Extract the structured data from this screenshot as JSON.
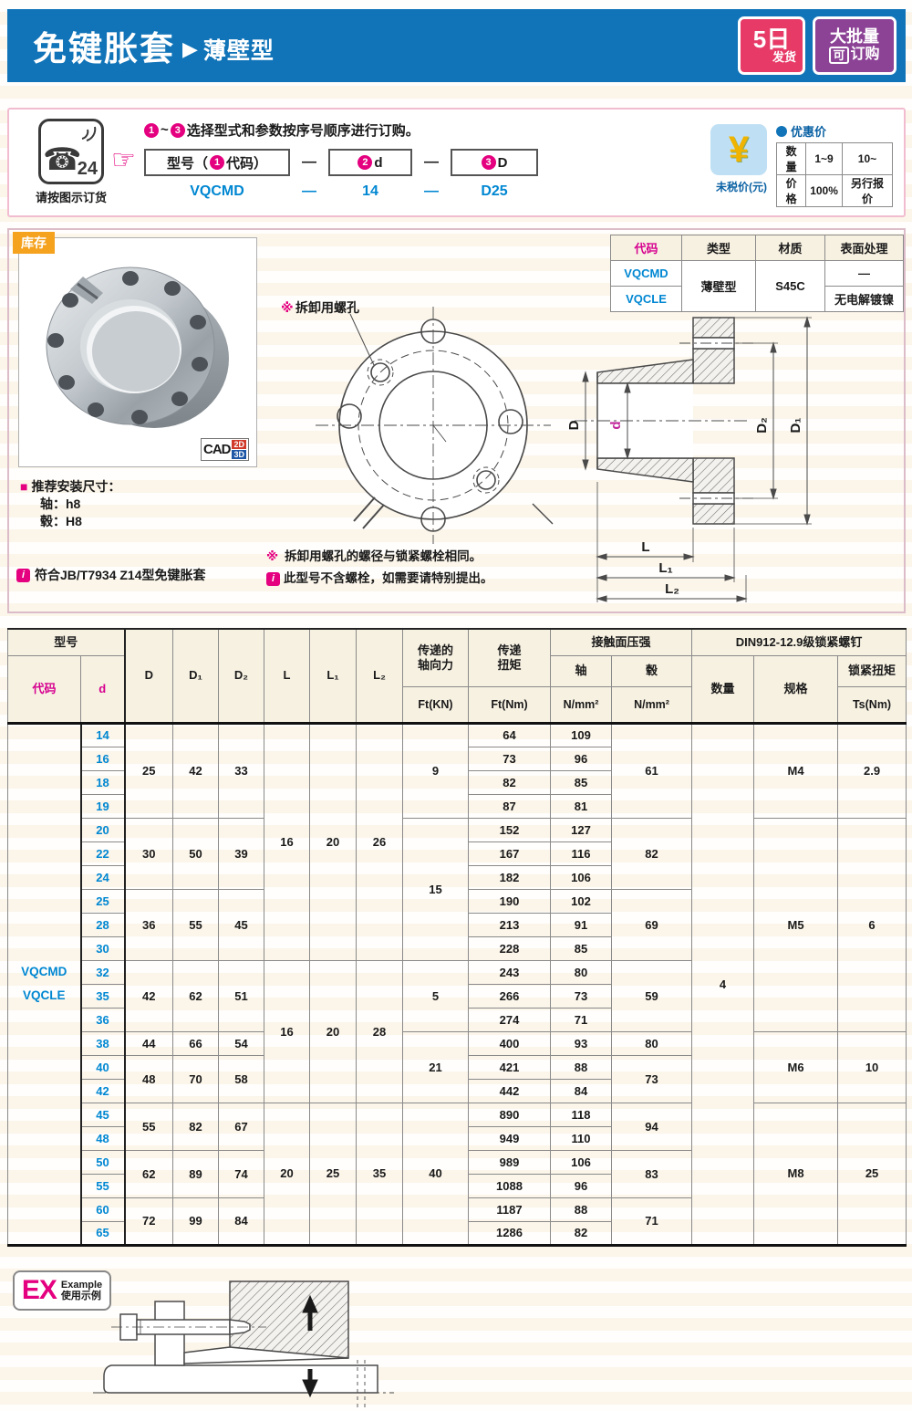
{
  "banner": {
    "title": "免键胀套",
    "arrow": "▶",
    "subtitle": "薄壁型",
    "ship_badge": {
      "line1": "5日",
      "line2": "发货"
    },
    "bulk_badge": {
      "line1": "大批量",
      "boxed": "可",
      "rest": "订购"
    }
  },
  "order": {
    "phone_number": "24",
    "phone_glyph": "☎",
    "phone_label": "请按图示订货",
    "hand_icon": "☞",
    "steps": {
      "from": "1",
      "tilde": "~",
      "to": "3"
    },
    "instruction": "选择型式和参数按序号顺序进行订购。",
    "box1": {
      "pre": "型号（",
      "num": "1",
      "post": "代码）"
    },
    "box2": {
      "num": "2",
      "post": "d"
    },
    "box3": {
      "num": "3",
      "post": "D"
    },
    "dash": "—",
    "example": {
      "code": "VQCMD",
      "dash1": "—",
      "d": "14",
      "dash2": "—",
      "D": "D25"
    }
  },
  "pricing": {
    "yen": "¥",
    "untaxed_label": "未税价(元)",
    "title": "优惠价",
    "rows": [
      [
        "数量",
        "1~9",
        "10~"
      ],
      [
        "价格",
        "100%",
        "另行报价"
      ]
    ]
  },
  "stock_badge": "库存",
  "cad": {
    "label": "CAD",
    "b2d": "2D",
    "b3d": "3D"
  },
  "spec_table": {
    "headers": [
      "代码",
      "类型",
      "材质",
      "表面处理"
    ],
    "codes": [
      "VQCMD",
      "VQCLE"
    ],
    "type": "薄壁型",
    "material": "S45C",
    "surface": [
      "—",
      "无电解镀镍"
    ]
  },
  "install": {
    "bullet": "■",
    "title": "推荐安装尺寸：",
    "shaft": "轴：h8",
    "hub": "毂：H8",
    "note": "符合JB/T7934 Z14型免键胀套",
    "note_icon": "i"
  },
  "front_view": {
    "label_mark": "※",
    "label_text": "拆卸用螺孔"
  },
  "dims": {
    "D": "D",
    "d": "d",
    "D1": "D₁",
    "D2": "D₂",
    "L": "L",
    "L1": "L₁",
    "L2": "L₂"
  },
  "notes": [
    {
      "mark": "※",
      "icon": false,
      "text": "拆卸用螺孔的螺径与锁紧螺栓相同。"
    },
    {
      "mark": "i",
      "icon": true,
      "text": "此型号不含螺栓，如需要请特别提出。"
    }
  ],
  "main_table": {
    "header": [
      [
        {
          "t": "型号",
          "cs": 2,
          "c": "br2"
        },
        {
          "t": "D",
          "rs": 3
        },
        {
          "t": "D₁",
          "rs": 3
        },
        {
          "t": "D₂",
          "rs": 3
        },
        {
          "t": "L",
          "rs": 3
        },
        {
          "t": "L₁",
          "rs": 3
        },
        {
          "t": "L₂",
          "rs": 3
        },
        {
          "t": "传递的\n轴向力",
          "rs": 2
        },
        {
          "t": "传递\n扭矩",
          "rs": 2
        },
        {
          "t": "接触面压强",
          "cs": 2
        },
        {
          "t": "DIN912-12.9级锁紧螺钉",
          "cs": 3
        }
      ],
      [
        {
          "t": "代码",
          "rs": 2,
          "c": "c-mag"
        },
        {
          "t": "d",
          "rs": 2,
          "c": "c-mag br2"
        },
        {
          "t": "轴"
        },
        {
          "t": "毂"
        },
        {
          "t": "数量",
          "rs": 2
        },
        {
          "t": "规格",
          "rs": 2
        },
        {
          "t": "锁紧扭矩"
        }
      ],
      [
        {
          "t": "Ft(KN)"
        },
        {
          "t": "Ft(Nm)"
        },
        {
          "t": "N/mm²"
        },
        {
          "t": "N/mm²"
        },
        {
          "t": "Ts(Nm)"
        }
      ]
    ],
    "body": [
      [
        {
          "t": "VQCMD\nVQCLE",
          "rs": 22,
          "c": "c-code"
        },
        {
          "t": "14",
          "c": "c-d"
        },
        {
          "t": "25",
          "rs": 4
        },
        {
          "t": "42",
          "rs": 4
        },
        {
          "t": "33",
          "rs": 4
        },
        {
          "t": "16",
          "rs": 10
        },
        {
          "t": "20",
          "rs": 10
        },
        {
          "t": "26",
          "rs": 10
        },
        {
          "t": "9",
          "rs": 4
        },
        {
          "t": "64"
        },
        {
          "t": "109"
        },
        {
          "t": "61",
          "rs": 4
        },
        {
          "t": "4",
          "rs": 22
        },
        {
          "t": "M4",
          "rs": 4
        },
        {
          "t": "2.9",
          "rs": 4
        }
      ],
      [
        {
          "t": "16",
          "c": "c-d"
        },
        {
          "t": "73"
        },
        {
          "t": "96"
        }
      ],
      [
        {
          "t": "18",
          "c": "c-d"
        },
        {
          "t": "82"
        },
        {
          "t": "85"
        }
      ],
      [
        {
          "t": "19",
          "c": "c-d"
        },
        {
          "t": "87"
        },
        {
          "t": "81"
        }
      ],
      [
        {
          "t": "20",
          "c": "c-d"
        },
        {
          "t": "30",
          "rs": 3
        },
        {
          "t": "50",
          "rs": 3
        },
        {
          "t": "39",
          "rs": 3
        },
        {
          "t": "15",
          "rs": 6
        },
        {
          "t": "152"
        },
        {
          "t": "127"
        },
        {
          "t": "82",
          "rs": 3
        },
        {
          "t": "M5",
          "rs": 9
        },
        {
          "t": "6",
          "rs": 9
        }
      ],
      [
        {
          "t": "22",
          "c": "c-d"
        },
        {
          "t": "167"
        },
        {
          "t": "116"
        }
      ],
      [
        {
          "t": "24",
          "c": "c-d"
        },
        {
          "t": "182"
        },
        {
          "t": "106"
        }
      ],
      [
        {
          "t": "25",
          "c": "c-d"
        },
        {
          "t": "36",
          "rs": 3
        },
        {
          "t": "55",
          "rs": 3
        },
        {
          "t": "45",
          "rs": 3
        },
        {
          "t": "190"
        },
        {
          "t": "102"
        },
        {
          "t": "69",
          "rs": 3
        }
      ],
      [
        {
          "t": "28",
          "c": "c-d"
        },
        {
          "t": "213"
        },
        {
          "t": "91"
        }
      ],
      [
        {
          "t": "30",
          "c": "c-d"
        },
        {
          "t": "228"
        },
        {
          "t": "85"
        }
      ],
      [
        {
          "t": "32",
          "c": "c-d"
        },
        {
          "t": "42",
          "rs": 3
        },
        {
          "t": "62",
          "rs": 3
        },
        {
          "t": "51",
          "rs": 3
        },
        {
          "t": "16",
          "rs": 6
        },
        {
          "t": "20",
          "rs": 6
        },
        {
          "t": "28",
          "rs": 6
        },
        {
          "t": "5",
          "rs": 3
        },
        {
          "t": "243"
        },
        {
          "t": "80"
        },
        {
          "t": "59",
          "rs": 3
        }
      ],
      [
        {
          "t": "35",
          "c": "c-d"
        },
        {
          "t": "266"
        },
        {
          "t": "73"
        }
      ],
      [
        {
          "t": "36",
          "c": "c-d"
        },
        {
          "t": "274"
        },
        {
          "t": "71"
        }
      ],
      [
        {
          "t": "38",
          "c": "c-d"
        },
        {
          "t": "44"
        },
        {
          "t": "66"
        },
        {
          "t": "54"
        },
        {
          "t": "21",
          "rs": 3
        },
        {
          "t": "400"
        },
        {
          "t": "93"
        },
        {
          "t": "80"
        },
        {
          "t": "M6",
          "rs": 3
        },
        {
          "t": "10",
          "rs": 3
        }
      ],
      [
        {
          "t": "40",
          "c": "c-d"
        },
        {
          "t": "48",
          "rs": 2
        },
        {
          "t": "70",
          "rs": 2
        },
        {
          "t": "58",
          "rs": 2
        },
        {
          "t": "421"
        },
        {
          "t": "88"
        },
        {
          "t": "73",
          "rs": 2
        }
      ],
      [
        {
          "t": "42",
          "c": "c-d"
        },
        {
          "t": "442"
        },
        {
          "t": "84"
        }
      ],
      [
        {
          "t": "45",
          "c": "c-d"
        },
        {
          "t": "55",
          "rs": 2
        },
        {
          "t": "82",
          "rs": 2
        },
        {
          "t": "67",
          "rs": 2
        },
        {
          "t": "20",
          "rs": 6
        },
        {
          "t": "25",
          "rs": 6
        },
        {
          "t": "35",
          "rs": 6
        },
        {
          "t": "40",
          "rs": 6
        },
        {
          "t": "890"
        },
        {
          "t": "118"
        },
        {
          "t": "94",
          "rs": 2
        },
        {
          "t": "M8",
          "rs": 6
        },
        {
          "t": "25",
          "rs": 6
        }
      ],
      [
        {
          "t": "48",
          "c": "c-d"
        },
        {
          "t": "949"
        },
        {
          "t": "110"
        }
      ],
      [
        {
          "t": "50",
          "c": "c-d"
        },
        {
          "t": "62",
          "rs": 2
        },
        {
          "t": "89",
          "rs": 2
        },
        {
          "t": "74",
          "rs": 2
        },
        {
          "t": "989"
        },
        {
          "t": "106"
        },
        {
          "t": "83",
          "rs": 2
        }
      ],
      [
        {
          "t": "55",
          "c": "c-d"
        },
        {
          "t": "1088"
        },
        {
          "t": "96"
        }
      ],
      [
        {
          "t": "60",
          "c": "c-d"
        },
        {
          "t": "72",
          "rs": 2
        },
        {
          "t": "99",
          "rs": 2
        },
        {
          "t": "84",
          "rs": 2
        },
        {
          "t": "1187"
        },
        {
          "t": "88"
        },
        {
          "t": "71",
          "rs": 2
        }
      ],
      [
        {
          "t": "65",
          "c": "c-d"
        },
        {
          "t": "1286"
        },
        {
          "t": "82"
        }
      ]
    ]
  },
  "example_section": {
    "ex": "EX",
    "en": "Example",
    "cn": "使用示例"
  }
}
